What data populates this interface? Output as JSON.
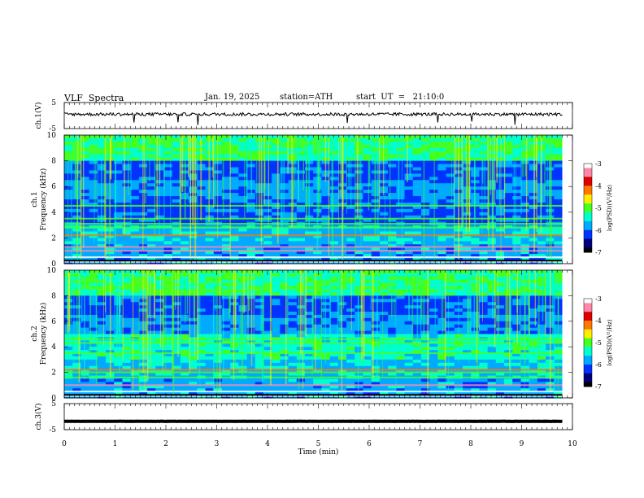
{
  "header": {
    "title": "VLF  Spectra",
    "date": "Jan. 19, 2025",
    "station": "station=ATH",
    "start_ut": "start  UT  =   21:10:0"
  },
  "colors": {
    "background": "#ffffff",
    "trace": "#000000",
    "colormap": [
      "#000000",
      "#00007a",
      "#0033ff",
      "#00aaff",
      "#00ffcc",
      "#44ff22",
      "#ffee00",
      "#ff7700",
      "#dd0000",
      "#ff88aa",
      "#ffffff"
    ]
  },
  "chart_data": [
    {
      "type": "line",
      "name_label": "ch.1(V)",
      "ylabel": "ch.1(V)",
      "ylim": [
        -5,
        5
      ],
      "yticks": [
        5,
        -5
      ],
      "xlim": [
        0,
        10
      ],
      "baseline": 0.5,
      "noise_amplitude": 1.2,
      "description_visible": "noisy trace near zero"
    },
    {
      "type": "heatmap",
      "ylabel_line1": "ch.1",
      "ylabel_line2": "Frequency  (kHz)",
      "ylim": [
        0,
        10
      ],
      "yticks": [
        0,
        2,
        4,
        6,
        8,
        10
      ],
      "xlim": [
        0,
        10
      ],
      "data_end_min": 9.8,
      "bands_khz": [
        0.15,
        0.5,
        1.0,
        1.3,
        2.2,
        2.8,
        3.1,
        3.5,
        4.5
      ],
      "colorbar": {
        "label": "log(PSD)(V²/Hz)",
        "ticks": [
          -3,
          -4,
          -5,
          -6,
          -7
        ],
        "range": [
          -7,
          -3
        ]
      }
    },
    {
      "type": "heatmap",
      "ylabel_line1": "ch.2",
      "ylabel_line2": "Frequency  (kHz)",
      "ylim": [
        0,
        10
      ],
      "yticks": [
        0,
        2,
        4,
        6,
        8,
        10
      ],
      "xlim": [
        0,
        10
      ],
      "data_end_min": 9.8,
      "bands_khz": [
        0.15,
        0.5,
        1.0,
        1.6,
        2.0,
        2.2,
        3.5,
        4.3,
        4.6
      ],
      "colorbar": {
        "label": "log(PSD)(V²/Hz)",
        "ticks": [
          -3,
          -4,
          -5,
          -6,
          -7
        ],
        "range": [
          -7,
          -3
        ]
      }
    },
    {
      "type": "line",
      "ylabel": "ch.3(V)",
      "ylim": [
        -5,
        5
      ],
      "yticks": [
        5,
        -5
      ],
      "xlim": [
        0,
        10
      ],
      "baseline": -1.8,
      "noise_amplitude": 0.1
    }
  ],
  "xaxis": {
    "label": "Time  (min)",
    "ticks": [
      0,
      1,
      2,
      3,
      4,
      5,
      6,
      7,
      8,
      9,
      10
    ]
  }
}
